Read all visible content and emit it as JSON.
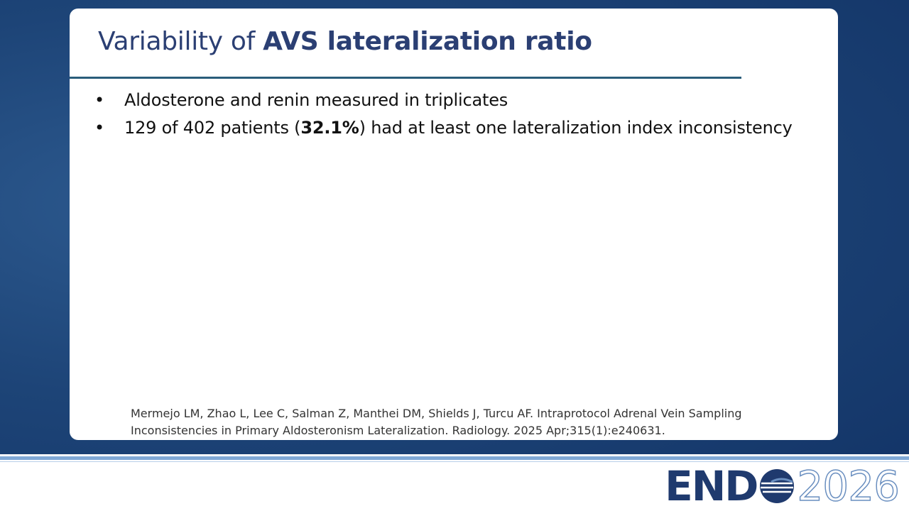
{
  "slide": {
    "title": {
      "regular": "Variability of ",
      "bold": "AVS lateralization ratio"
    },
    "bullets": [
      [
        {
          "text": "Aldosterone and renin measured in triplicates",
          "bold": false
        }
      ],
      [
        {
          "text": "129 of 402 patients (",
          "bold": false
        },
        {
          "text": "32.1%",
          "bold": true
        },
        {
          "text": ") had at least one lateralization index inconsistency",
          "bold": false
        }
      ]
    ],
    "reference": [
      "Mermejo LM, Zhao L, Lee C, Salman Z, Manthei DM, Shields J, Turcu AF. Intraprotocol Adrenal Vein Sampling",
      "Inconsistencies in Primary Aldosteronism Lateralization. Radiology. 2025 Apr;315(1):e240631."
    ],
    "logo": {
      "left": "END",
      "right": "2026"
    }
  }
}
